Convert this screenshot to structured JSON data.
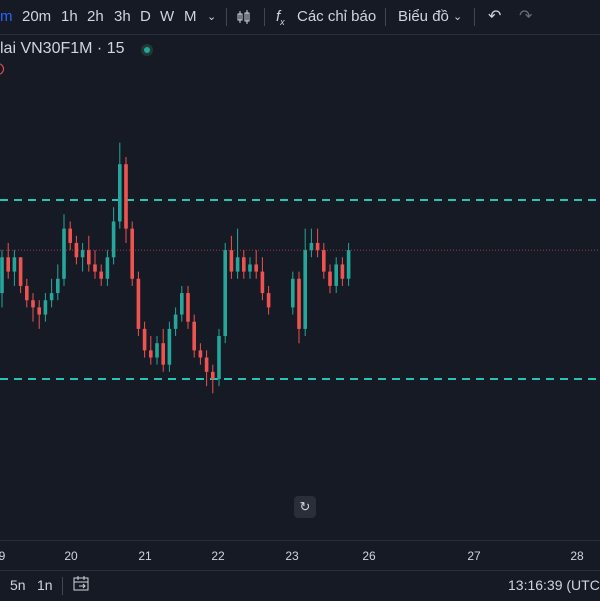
{
  "toolbar": {
    "interval_active": "m",
    "intervals": [
      "20m",
      "1h",
      "2h",
      "3h",
      "D",
      "W",
      "M"
    ],
    "indicators_label": "Các chỉ báo",
    "chart_type_label": "Biểu đồ"
  },
  "legend": {
    "title": "lai VN30F1M · 15"
  },
  "colors": {
    "up": "#26a69a",
    "down": "#ef5350",
    "level_line": "#22c6b5",
    "price_line": "#ef5350",
    "background": "#161a25"
  },
  "chart_data": {
    "type": "candlestick",
    "x_ticks": [
      "9",
      "20",
      "21",
      "22",
      "23",
      "26",
      "27",
      "28"
    ],
    "levels": [
      1346,
      1321
    ],
    "last_price": 1339,
    "candles": [
      [
        1333,
        1338,
        1331,
        1339
      ],
      [
        1338,
        1336,
        1335,
        1340
      ],
      [
        1336,
        1338,
        1334,
        1339
      ],
      [
        1338,
        1334,
        1333,
        1338
      ],
      [
        1334,
        1332,
        1331,
        1335
      ],
      [
        1332,
        1331,
        1329,
        1333
      ],
      [
        1331,
        1330,
        1328,
        1332
      ],
      [
        1330,
        1332,
        1329,
        1333
      ],
      [
        1332,
        1333,
        1331,
        1335
      ],
      [
        1333,
        1335,
        1332,
        1337
      ],
      [
        1335,
        1342,
        1334,
        1344
      ],
      [
        1342,
        1340,
        1339,
        1343
      ],
      [
        1340,
        1338,
        1337,
        1341
      ],
      [
        1338,
        1339,
        1336,
        1340
      ],
      [
        1339,
        1337,
        1336,
        1341
      ],
      [
        1337,
        1336,
        1335,
        1339
      ],
      [
        1336,
        1335,
        1334,
        1337
      ],
      [
        1335,
        1338,
        1334,
        1339
      ],
      [
        1338,
        1343,
        1337,
        1345
      ],
      [
        1343,
        1351,
        1342,
        1354
      ],
      [
        1351,
        1342,
        1340,
        1352
      ],
      [
        1342,
        1335,
        1334,
        1343
      ],
      [
        1335,
        1328,
        1327,
        1336
      ],
      [
        1328,
        1325,
        1324,
        1329
      ],
      [
        1325,
        1324,
        1323,
        1327
      ],
      [
        1324,
        1326,
        1323,
        1327
      ],
      [
        1326,
        1323,
        1322,
        1328
      ],
      [
        1323,
        1328,
        1322,
        1329
      ],
      [
        1328,
        1330,
        1327,
        1331
      ],
      [
        1330,
        1333,
        1329,
        1334
      ],
      [
        1333,
        1329,
        1328,
        1334
      ],
      [
        1329,
        1325,
        1324,
        1330
      ],
      [
        1325,
        1324,
        1323,
        1326
      ],
      [
        1324,
        1322,
        1320,
        1325
      ],
      [
        1322,
        1321,
        1319,
        1323
      ],
      [
        1321,
        1327,
        1320,
        1328
      ],
      [
        1327,
        1339,
        1326,
        1340
      ],
      [
        1339,
        1336,
        1335,
        1341
      ],
      [
        1336,
        1338,
        1335,
        1342
      ],
      [
        1338,
        1336,
        1335,
        1339
      ],
      [
        1336,
        1337,
        1335,
        1338
      ],
      [
        1337,
        1336,
        1335,
        1339
      ],
      [
        1336,
        1333,
        1332,
        1338
      ],
      [
        1333,
        1331,
        1330,
        1334
      ],
      [
        1331,
        1335,
        1330,
        1336
      ],
      [
        1335,
        1328,
        1326,
        1336
      ],
      [
        1328,
        1339,
        1327,
        1342
      ],
      [
        1339,
        1340,
        1338,
        1342
      ],
      [
        1340,
        1339,
        1338,
        1342
      ],
      [
        1339,
        1336,
        1335,
        1340
      ],
      [
        1336,
        1334,
        1333,
        1337
      ],
      [
        1334,
        1337,
        1333,
        1338
      ],
      [
        1337,
        1335,
        1334,
        1338
      ],
      [
        1335,
        1339,
        1334,
        1340
      ]
    ]
  },
  "time_axis": {
    "labels": [
      "9",
      "20",
      "21",
      "22",
      "23",
      "26",
      "27",
      "28"
    ]
  },
  "bottom": {
    "range_5n": "5n",
    "range_1n": "1n",
    "clock": "13:16:39 (UTC"
  }
}
